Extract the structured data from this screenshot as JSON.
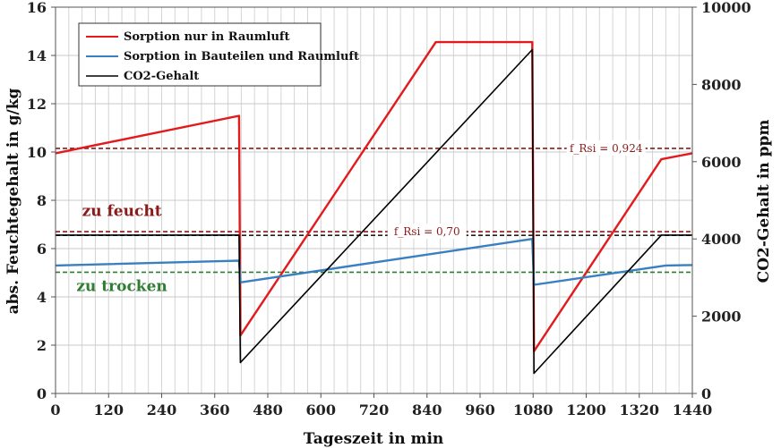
{
  "chart_data": {
    "type": "line",
    "title": "",
    "xlabel": "Tageszeit in min",
    "ylabel_left": "abs. Feuchtegehalt in g/kg",
    "ylabel_right": "CO2-Gehalt in ppm",
    "xlim": [
      0,
      1440
    ],
    "ylim_left": [
      0,
      16
    ],
    "ylim_right": [
      0,
      10000
    ],
    "x_ticks": [
      0,
      120,
      240,
      360,
      480,
      600,
      720,
      840,
      960,
      1080,
      1200,
      1320,
      1440
    ],
    "y_ticks_left": [
      0,
      2,
      4,
      6,
      8,
      10,
      12,
      14,
      16
    ],
    "y_ticks_right": [
      0,
      2000,
      4000,
      6000,
      8000,
      10000
    ],
    "grid": true,
    "legend_position": "top-left",
    "series": [
      {
        "name": "Sorption nur in Raumluft",
        "axis": "left",
        "color": "#e31a1c",
        "points": [
          [
            0,
            9.95
          ],
          [
            415,
            11.5
          ],
          [
            418,
            2.4
          ],
          [
            860,
            14.55
          ],
          [
            1078,
            14.55
          ],
          [
            1082,
            1.75
          ],
          [
            1370,
            9.7
          ],
          [
            1440,
            9.95
          ]
        ]
      },
      {
        "name": "Sorption in Bauteilen und Raumluft",
        "axis": "left",
        "color": "#3a7fc1",
        "points": [
          [
            0,
            5.3
          ],
          [
            415,
            5.5
          ],
          [
            418,
            4.6
          ],
          [
            1078,
            6.4
          ],
          [
            1082,
            4.5
          ],
          [
            1380,
            5.3
          ],
          [
            1440,
            5.32
          ]
        ]
      },
      {
        "name": "CO2-Gehalt",
        "axis": "right",
        "color": "#000000",
        "points": [
          [
            0,
            4100
          ],
          [
            415,
            4100
          ],
          [
            418,
            800
          ],
          [
            1078,
            8900
          ],
          [
            1082,
            520
          ],
          [
            1370,
            4100
          ],
          [
            1440,
            4100
          ]
        ]
      }
    ],
    "thresholds": [
      {
        "value": 10.15,
        "color": "#8b1a1a",
        "label": "f_Rsi = 0,924",
        "label_x": 1245
      },
      {
        "value": 6.7,
        "color": "#8b1a1a",
        "label": "f_Rsi = 0,70",
        "label_x": 840
      },
      {
        "value": 6.55,
        "color": "#2b1a1a",
        "label": "",
        "label_x": 0
      },
      {
        "value": 5.02,
        "color": "#2e7d32",
        "label": "",
        "label_x": 0
      }
    ],
    "annotations": [
      {
        "text": "zu feucht",
        "x": 150,
        "y": 7.35,
        "color": "#8b1a1a"
      },
      {
        "text": "zu trocken",
        "x": 150,
        "y": 4.25,
        "color": "#2e7d32"
      }
    ]
  }
}
